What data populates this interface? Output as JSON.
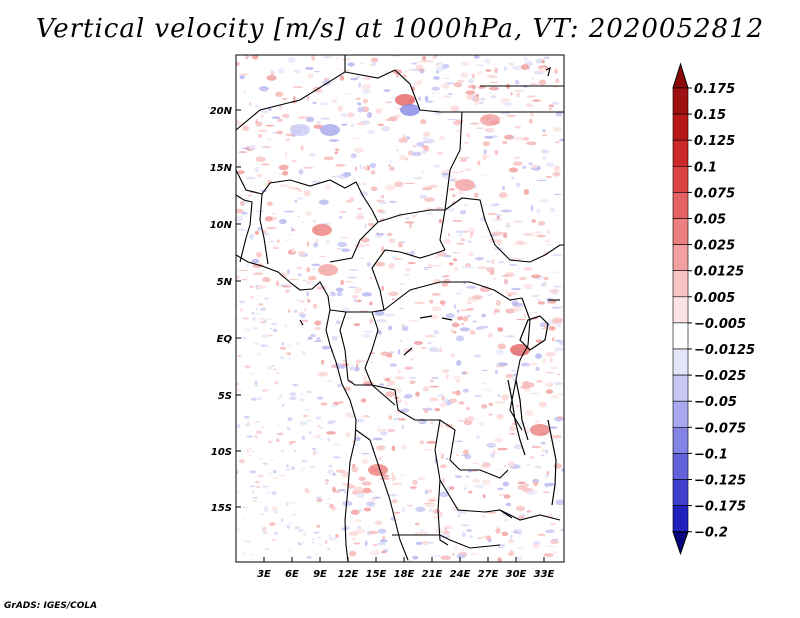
{
  "title": "Vertical velocity [m/s] at 1000hPa, VT: 2020052812",
  "credit": "GrADS: IGES/COLA",
  "map": {
    "lat_ticks": [
      "20N",
      "15N",
      "10N",
      "5N",
      "EQ",
      "5S",
      "10S",
      "15S"
    ],
    "lon_ticks": [
      "3E",
      "6E",
      "9E",
      "12E",
      "15E",
      "18E",
      "21E",
      "24E",
      "27E",
      "30E",
      "33E"
    ]
  },
  "colorbar": {
    "labels": [
      "0.175",
      "0.15",
      "0.125",
      "0.1",
      "0.075",
      "0.05",
      "0.025",
      "0.0125",
      "0.005",
      "−0.005",
      "−0.0125",
      "−0.025",
      "−0.05",
      "−0.075",
      "−0.1",
      "−0.125",
      "−0.175",
      "−0.2"
    ],
    "colors": [
      "#a01010",
      "#b81818",
      "#cc2a2a",
      "#dc4444",
      "#e46262",
      "#ec8080",
      "#f2a0a0",
      "#f8c4c4",
      "#fde4e4",
      "#ffffff",
      "#e4e4fa",
      "#c8c8f4",
      "#a8a8ee",
      "#8484e4",
      "#6262dc",
      "#4040d0",
      "#2020bc",
      "#0808a0"
    ],
    "top_arrow_color": "#8a0a0a",
    "bottom_arrow_color": "#06067e"
  }
}
